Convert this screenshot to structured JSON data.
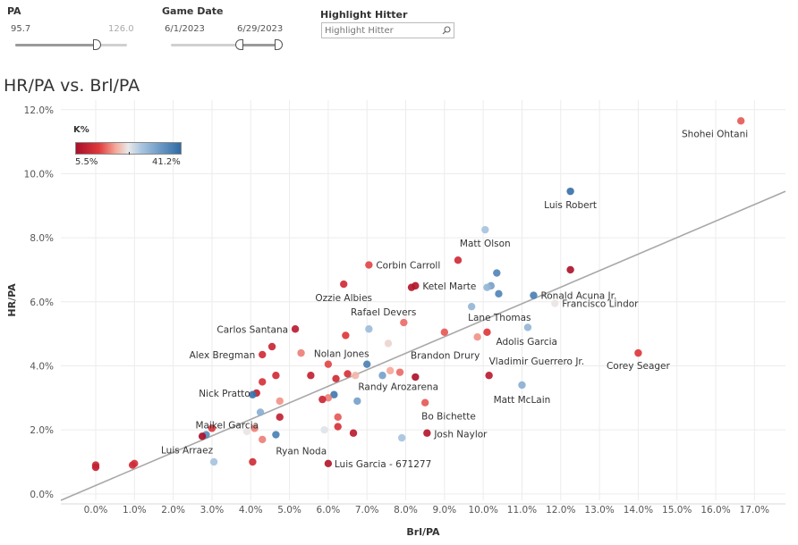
{
  "filters": {
    "pa": {
      "label": "PA",
      "min": "95.7",
      "max": "126.0"
    },
    "game_date": {
      "label": "Game Date",
      "start": "6/1/2023",
      "end": "6/29/2023"
    },
    "highlight": {
      "label": "Highlight Hitter",
      "placeholder": "Highlight Hitter"
    }
  },
  "legend": {
    "title": "K%",
    "min_label": "5.5%",
    "max_label": "41.2%"
  },
  "colors": {
    "low_k": "#b5162c",
    "mid_k": "#e3e3e3",
    "high_k": "#2f6da6",
    "trend": "#a8a8a8"
  },
  "chart_data": {
    "type": "scatter",
    "title": "HR/PA vs. Brl/PA",
    "xlabel": "Brl/PA",
    "ylabel": "HR/PA",
    "xlim": [
      -0.009,
      0.178
    ],
    "ylim": [
      -0.002,
      0.123
    ],
    "xticks": [
      0.0,
      0.01,
      0.02,
      0.03,
      0.04,
      0.05,
      0.06,
      0.07,
      0.08,
      0.09,
      0.1,
      0.11,
      0.12,
      0.13,
      0.14,
      0.15,
      0.16,
      0.17
    ],
    "xtick_labels": [
      "0.0%",
      "1.0%",
      "2.0%",
      "3.0%",
      "4.0%",
      "5.0%",
      "6.0%",
      "7.0%",
      "8.0%",
      "9.0%",
      "10.0%",
      "11.0%",
      "12.0%",
      "13.0%",
      "14.0%",
      "15.0%",
      "16.0%",
      "17.0%"
    ],
    "yticks": [
      0.0,
      0.02,
      0.04,
      0.06,
      0.08,
      0.1,
      0.12
    ],
    "ytick_labels": [
      "0.0%",
      "2.0%",
      "4.0%",
      "6.0%",
      "8.0%",
      "10.0%",
      "12.0%"
    ],
    "trendline": {
      "x0": -0.009,
      "y0": -0.002,
      "x1": 0.178,
      "y1": 0.0945
    },
    "k_range": [
      5.5,
      41.2
    ],
    "points": [
      {
        "x": 0.1665,
        "y": 0.1165,
        "k": 15,
        "label": "Shohei Ohtani",
        "anchor": "end"
      },
      {
        "x": 0.1225,
        "y": 0.0945,
        "k": 40,
        "label": "Luis Robert",
        "anchor": "middle"
      },
      {
        "x": 0.1005,
        "y": 0.0825,
        "k": 28,
        "label": "Matt Olson",
        "anchor": "middle"
      },
      {
        "x": 0.0935,
        "y": 0.073,
        "k": 11
      },
      {
        "x": 0.0705,
        "y": 0.0715,
        "k": 14,
        "label": "Corbin Carroll",
        "anchor": "start"
      },
      {
        "x": 0.1225,
        "y": 0.07,
        "k": 6
      },
      {
        "x": 0.1035,
        "y": 0.069,
        "k": 37
      },
      {
        "x": 0.102,
        "y": 0.065,
        "k": 33
      },
      {
        "x": 0.101,
        "y": 0.0645,
        "k": 30
      },
      {
        "x": 0.064,
        "y": 0.0655,
        "k": 11,
        "label": "Ozzie Albies",
        "anchor": "middle"
      },
      {
        "x": 0.0825,
        "y": 0.065,
        "k": 7,
        "label": "Ketel Marte",
        "anchor": "start"
      },
      {
        "x": 0.0815,
        "y": 0.0645,
        "k": 7
      },
      {
        "x": 0.104,
        "y": 0.0625,
        "k": 37
      },
      {
        "x": 0.113,
        "y": 0.062,
        "k": 38,
        "label": "Ronald Acuna Jr.",
        "anchor": "start"
      },
      {
        "x": 0.1185,
        "y": 0.0595,
        "k": 23,
        "label": "Francisco Lindor",
        "anchor": "start"
      },
      {
        "x": 0.097,
        "y": 0.0585,
        "k": 30,
        "label": "Lane Thomas",
        "anchor": "start"
      },
      {
        "x": 0.0795,
        "y": 0.0535,
        "k": 16,
        "label": "Rafael Devers",
        "anchor": "end"
      },
      {
        "x": 0.0705,
        "y": 0.0515,
        "k": 29
      },
      {
        "x": 0.1115,
        "y": 0.052,
        "k": 30
      },
      {
        "x": 0.0515,
        "y": 0.0515,
        "k": 8,
        "label": "Carlos Santana",
        "anchor": "end"
      },
      {
        "x": 0.09,
        "y": 0.0505,
        "k": 15
      },
      {
        "x": 0.101,
        "y": 0.0505,
        "k": 13,
        "label": "Adolis Garcia",
        "anchor": "start"
      },
      {
        "x": 0.0645,
        "y": 0.0495,
        "k": 13
      },
      {
        "x": 0.0755,
        "y": 0.047,
        "k": 22
      },
      {
        "x": 0.0985,
        "y": 0.049,
        "k": 18
      },
      {
        "x": 0.0455,
        "y": 0.046,
        "k": 10
      },
      {
        "x": 0.043,
        "y": 0.0435,
        "k": 11,
        "label": "Alex Bregman",
        "anchor": "end"
      },
      {
        "x": 0.053,
        "y": 0.044,
        "k": 17
      },
      {
        "x": 0.14,
        "y": 0.044,
        "k": 13,
        "label": "Corey Seager",
        "anchor": "middle"
      },
      {
        "x": 0.06,
        "y": 0.0405,
        "k": 14,
        "label": "Nolan Jones",
        "anchor": "start"
      },
      {
        "x": 0.07,
        "y": 0.0405,
        "k": 38
      },
      {
        "x": 0.0785,
        "y": 0.038,
        "k": 16,
        "label": "Brandon Drury",
        "anchor": "start"
      },
      {
        "x": 0.076,
        "y": 0.0385,
        "k": 19
      },
      {
        "x": 0.074,
        "y": 0.037,
        "k": 33
      },
      {
        "x": 0.067,
        "y": 0.037,
        "k": 20
      },
      {
        "x": 0.065,
        "y": 0.0375,
        "k": 12
      },
      {
        "x": 0.0555,
        "y": 0.037,
        "k": 9
      },
      {
        "x": 0.0465,
        "y": 0.037,
        "k": 11
      },
      {
        "x": 0.062,
        "y": 0.036,
        "k": 11
      },
      {
        "x": 0.0825,
        "y": 0.0365,
        "k": 6
      },
      {
        "x": 0.1015,
        "y": 0.037,
        "k": 8,
        "label": "Vladimir Guerrero Jr.",
        "anchor": "start"
      },
      {
        "x": 0.043,
        "y": 0.035,
        "k": 12
      },
      {
        "x": 0.11,
        "y": 0.034,
        "k": 31,
        "label": "Matt McLain",
        "anchor": "middle"
      },
      {
        "x": 0.0615,
        "y": 0.031,
        "k": 39,
        "label": "Randy Arozarena",
        "anchor": "start"
      },
      {
        "x": 0.06,
        "y": 0.03,
        "k": 17
      },
      {
        "x": 0.0585,
        "y": 0.0295,
        "k": 10
      },
      {
        "x": 0.0415,
        "y": 0.0315,
        "k": 9,
        "label": "Nick Pratto",
        "anchor": "end"
      },
      {
        "x": 0.0405,
        "y": 0.031,
        "k": 40
      },
      {
        "x": 0.0475,
        "y": 0.029,
        "k": 18
      },
      {
        "x": 0.0675,
        "y": 0.029,
        "k": 33
      },
      {
        "x": 0.085,
        "y": 0.0285,
        "k": 15,
        "label": "Bo Bichette",
        "anchor": "start"
      },
      {
        "x": 0.0425,
        "y": 0.0255,
        "k": 31,
        "label": "Maikel Garcia",
        "anchor": "end"
      },
      {
        "x": 0.0475,
        "y": 0.024,
        "k": 9
      },
      {
        "x": 0.0625,
        "y": 0.024,
        "k": 15
      },
      {
        "x": 0.03,
        "y": 0.0205,
        "k": 13
      },
      {
        "x": 0.041,
        "y": 0.0205,
        "k": 17
      },
      {
        "x": 0.0625,
        "y": 0.021,
        "k": 12
      },
      {
        "x": 0.039,
        "y": 0.0195,
        "k": 23
      },
      {
        "x": 0.059,
        "y": 0.02,
        "k": 24
      },
      {
        "x": 0.0465,
        "y": 0.0185,
        "k": 38,
        "label": "Ryan Noda",
        "anchor": "start"
      },
      {
        "x": 0.0665,
        "y": 0.019,
        "k": 8
      },
      {
        "x": 0.0855,
        "y": 0.019,
        "k": 7,
        "label": "Josh Naylor",
        "anchor": "start"
      },
      {
        "x": 0.043,
        "y": 0.017,
        "k": 17
      },
      {
        "x": 0.0285,
        "y": 0.0185,
        "k": 36
      },
      {
        "x": 0.0275,
        "y": 0.018,
        "k": 5.5,
        "label": "Luis Arraez",
        "anchor": "end"
      },
      {
        "x": 0.079,
        "y": 0.0175,
        "k": 28
      },
      {
        "x": 0.0305,
        "y": 0.01,
        "k": 28
      },
      {
        "x": 0.0405,
        "y": 0.01,
        "k": 11
      },
      {
        "x": 0.06,
        "y": 0.0095,
        "k": 7,
        "label": "Luis Garcia - 671277",
        "anchor": "start"
      },
      {
        "x": 0.0,
        "y": 0.009,
        "k": 10
      },
      {
        "x": 0.0,
        "y": 0.0083,
        "k": 9
      },
      {
        "x": 0.01,
        "y": 0.0095,
        "k": 12
      },
      {
        "x": 0.0095,
        "y": 0.009,
        "k": 11
      }
    ]
  }
}
